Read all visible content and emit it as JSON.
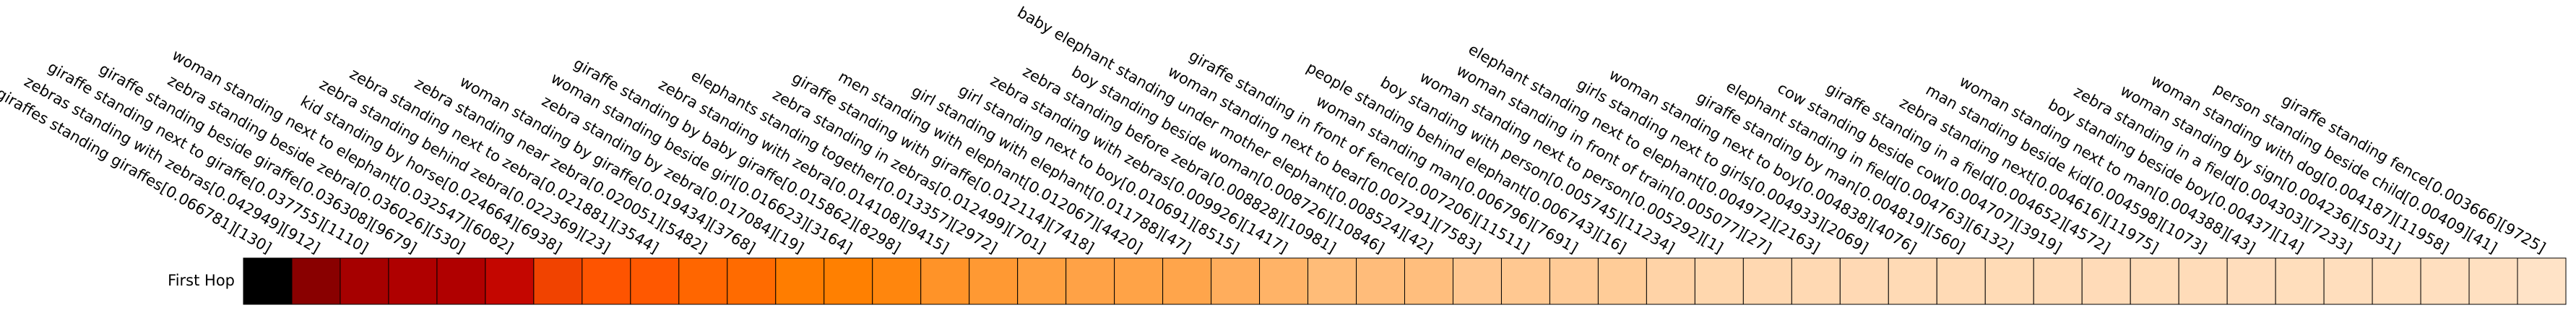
{
  "chart_data": {
    "type": "heatmap",
    "categories": [
      "giraffes standing giraffes[0.066781][130]",
      "zebras standing with zebras[0.042949][912]",
      "giraffe standing next to giraffe[0.037755][1110]",
      "giraffe standing beside giraffe[0.036308][9679]",
      "zebra standing beside zebra[0.036026][530]",
      "woman standing next to elephant[0.032547][6082]",
      "kid standing by horse[0.024664][6938]",
      "zebra standing behind zebra[0.022369][23]",
      "zebra standing next to zebra[0.021881][3544]",
      "zebra standing near zebra[0.020051][5482]",
      "woman standing by giraffe[0.019434][3768]",
      "zebra standing by zebra[0.017084][19]",
      "woman standing beside girl[0.016623][3164]",
      "giraffe standing by baby giraffe[0.015862][8298]",
      "zebra standing with zebra[0.014108][9415]",
      "elephants standing together[0.013357][2972]",
      "zebra standing in zebras[0.012499][701]",
      "giraffe standing with giraffe[0.012114][7418]",
      "men standing with elephant[0.012067][4420]",
      "girl standing with elephant[0.011788][47]",
      "girl standing next to boy[0.010691][8515]",
      "zebra standing with zebras[0.009926][1417]",
      "zebra standing before zebra[0.008828][10981]",
      "boy standing beside woman[0.008726][10846]",
      "baby elephant standing under mother elephant[0.008524][42]",
      "woman standing next to bear[0.007291][7583]",
      "giraffe standing in front of fence[0.007206][11511]",
      "woman standing man[0.006796][7691]",
      "people standing behind elephant[0.006743][16]",
      "boy standing with person[0.005745][11234]",
      "woman standing next to person[0.005292][1]",
      "woman standing in front of train[0.005077][27]",
      "elephant standing next to elephant[0.004972][2163]",
      "girls standing next to girls[0.004933][2069]",
      "woman standing next to boy[0.004838][4076]",
      "giraffe standing by man[0.004819][560]",
      "elephant standing in field[0.004763][6132]",
      "cow standing beside cow[0.004707][3919]",
      "giraffe standing in a field[0.004652][4572]",
      "zebra standing next[0.004616][11975]",
      "man standing beside kid[0.004598][1073]",
      "woman standing next to man[0.004388][43]",
      "boy standing beside boy[0.00437][14]",
      "zebra standing in a field[0.004303][7233]",
      "woman standing by sign[0.004236][5031]",
      "woman standing with dog[0.004187][11958]",
      "person standing beside child[0.00409][41]",
      "giraffe standing fence[0.003666][9725]"
    ],
    "rows": [
      "First Hop"
    ],
    "values": [
      [
        0.066781,
        0.042949,
        0.037755,
        0.036308,
        0.036026,
        0.032547,
        0.024664,
        0.022369,
        0.021881,
        0.020051,
        0.019434,
        0.017084,
        0.016623,
        0.015862,
        0.014108,
        0.013357,
        0.012499,
        0.012114,
        0.012067,
        0.011788,
        0.010691,
        0.009926,
        0.008828,
        0.008726,
        0.008524,
        0.007291,
        0.007206,
        0.006796,
        0.006743,
        0.005745,
        0.005292,
        0.005077,
        0.004972,
        0.004933,
        0.004838,
        0.004819,
        0.004763,
        0.004707,
        0.004652,
        0.004616,
        0.004598,
        0.004388,
        0.00437,
        0.004303,
        0.004236,
        0.004187,
        0.00409,
        0.003666
      ]
    ],
    "colormap": "gist_heat_r"
  }
}
